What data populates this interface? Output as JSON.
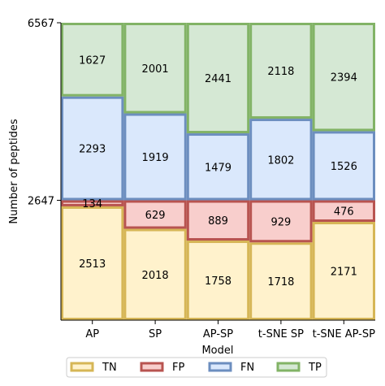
{
  "chart_data": {
    "type": "bar",
    "stacked": true,
    "xlabel": "Model",
    "ylabel": "Number of peptides",
    "categories": [
      "AP",
      "SP",
      "AP-SP",
      "t-SNE SP",
      "t-SNE AP-SP"
    ],
    "yticks": [
      2647,
      6567
    ],
    "ylim": [
      0,
      6567
    ],
    "series": [
      {
        "name": "TN",
        "values": [
          2513,
          2018,
          1758,
          1718,
          2171
        ],
        "fill": "#fff2cc",
        "edge": "#d6b656"
      },
      {
        "name": "FP",
        "values": [
          134,
          629,
          889,
          929,
          476
        ],
        "fill": "#f8cecc",
        "edge": "#b85450"
      },
      {
        "name": "FN",
        "values": [
          2293,
          1919,
          1479,
          1802,
          1526
        ],
        "fill": "#dae8fc",
        "edge": "#6c8ebf"
      },
      {
        "name": "TP",
        "values": [
          1627,
          2001,
          2441,
          2118,
          2394
        ],
        "fill": "#d5e8d4",
        "edge": "#82b366"
      }
    ],
    "legend_position": "bottom-center",
    "grid": false
  }
}
